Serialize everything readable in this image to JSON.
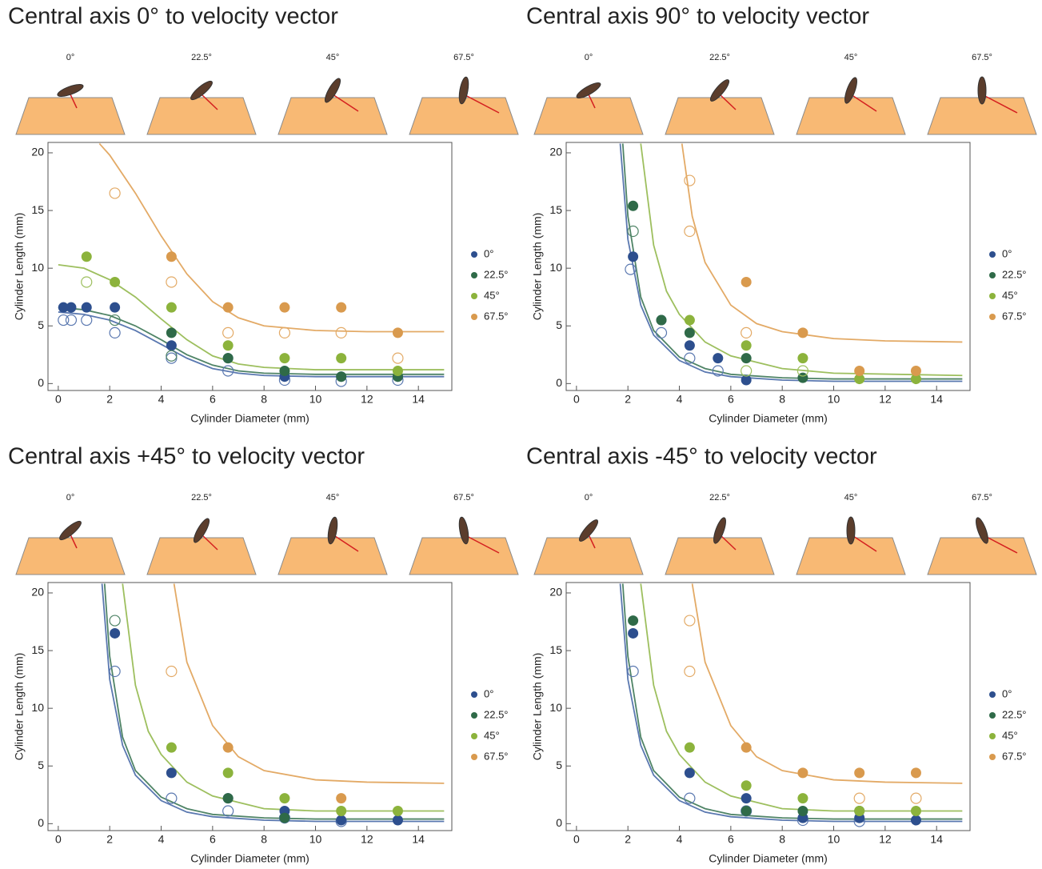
{
  "chart_data": [
    {
      "type": "scatter",
      "title": "Central axis 0° to velocity vector",
      "icon_labels": [
        "0°",
        "22.5°",
        "45°",
        "67.5°"
      ],
      "xlabel": "Cylinder Diameter (mm)",
      "ylabel": "Cylinder Length (mm)",
      "xlim": [
        -0.4,
        15.3
      ],
      "ylim": [
        -0.6,
        20.9
      ],
      "xticks": [
        0,
        2,
        4,
        6,
        8,
        10,
        12,
        14
      ],
      "yticks": [
        0,
        5,
        10,
        15,
        20
      ],
      "series": [
        {
          "name": "0°",
          "color": "#2d4f8e",
          "fit_color": "#5a78b0",
          "filled": {
            "x": [
              0.2,
              0.5,
              1.1,
              2.2,
              4.4,
              6.6,
              8.8,
              11,
              13.2
            ],
            "values": [
              6.6,
              6.6,
              6.6,
              6.6,
              3.3,
              2.2,
              0.6,
              0.6,
              0.6
            ]
          },
          "open": {
            "x": [
              0.2,
              0.5,
              1.1,
              2.2,
              4.4,
              6.6,
              8.8,
              11,
              13.2
            ],
            "values": [
              5.5,
              5.5,
              5.5,
              4.4,
              2.2,
              1.1,
              0.3,
              0.2,
              0.3
            ]
          },
          "fit": {
            "x": [
              0,
              1,
              2,
              3,
              4,
              5,
              6,
              7,
              8,
              10,
              12,
              15
            ],
            "values": [
              6.2,
              6.0,
              5.5,
              4.6,
              3.4,
              2.2,
              1.3,
              0.9,
              0.7,
              0.6,
              0.6,
              0.6
            ]
          }
        },
        {
          "name": "22.5°",
          "color": "#2f6a48",
          "fit_color": "#4f8466",
          "filled": {
            "x": [
              4.4,
              6.6,
              8.8,
              11,
              13.2
            ],
            "values": [
              4.4,
              2.2,
              1.1,
              0.6,
              0.6
            ]
          },
          "open": {
            "x": [
              2.2,
              4.4
            ],
            "values": [
              5.5,
              2.4
            ]
          },
          "fit": {
            "x": [
              0,
              1,
              2,
              3,
              4,
              5,
              6,
              7,
              8,
              10,
              12,
              15
            ],
            "values": [
              6.6,
              6.4,
              5.9,
              5.0,
              3.8,
              2.5,
              1.6,
              1.1,
              0.9,
              0.8,
              0.8,
              0.8
            ]
          }
        },
        {
          "name": "45°",
          "color": "#8cb33c",
          "fit_color": "#9dbf5e",
          "filled": {
            "x": [
              1.1,
              2.2,
              4.4,
              6.6,
              8.8,
              11,
              13.2
            ],
            "values": [
              11,
              8.8,
              6.6,
              3.3,
              2.2,
              2.2,
              1.1
            ]
          },
          "open": {
            "x": [
              1.1
            ],
            "values": [
              8.8
            ]
          },
          "fit": {
            "x": [
              0,
              1,
              2,
              3,
              4,
              5,
              6,
              7,
              8,
              10,
              12,
              15
            ],
            "values": [
              10.3,
              10.0,
              9.0,
              7.5,
              5.6,
              3.8,
              2.4,
              1.7,
              1.4,
              1.2,
              1.2,
              1.2
            ]
          }
        },
        {
          "name": "67.5°",
          "color": "#d99a4e",
          "fit_color": "#e3aa66",
          "filled": {
            "x": [
              4.4,
              6.6,
              8.8,
              11,
              13.2
            ],
            "values": [
              11,
              6.6,
              6.6,
              6.6,
              4.4
            ]
          },
          "open": {
            "x": [
              2.2,
              4.4,
              6.6,
              8.8,
              11,
              13.2
            ],
            "values": [
              16.5,
              8.8,
              4.4,
              4.4,
              4.4,
              2.2
            ]
          },
          "fit": {
            "x": [
              1.6,
              2,
              3,
              4,
              5,
              6,
              7,
              8,
              10,
              12,
              15
            ],
            "values": [
              20.8,
              19.8,
              16.5,
              12.8,
              9.5,
              7.1,
              5.7,
              5.0,
              4.6,
              4.5,
              4.5
            ]
          }
        }
      ]
    },
    {
      "type": "scatter",
      "title": "Central axis 90° to velocity vector",
      "icon_labels": [
        "0°",
        "22.5°",
        "45°",
        "67.5°"
      ],
      "xlabel": "Cylinder Diameter (mm)",
      "ylabel": "Cylinder Length (mm)",
      "xlim": [
        -0.4,
        15.3
      ],
      "ylim": [
        -0.6,
        20.9
      ],
      "xticks": [
        0,
        2,
        4,
        6,
        8,
        10,
        12,
        14
      ],
      "yticks": [
        0,
        5,
        10,
        15,
        20
      ],
      "series": [
        {
          "name": "0°",
          "color": "#2d4f8e",
          "fit_color": "#5a78b0",
          "filled": {
            "x": [
              2.2,
              3.3,
              4.4,
              5.5,
              6.6
            ],
            "values": [
              11,
              5.5,
              3.3,
              2.2,
              0.3
            ]
          },
          "open": {
            "x": [
              2.1,
              3.3,
              4.4,
              5.5
            ],
            "values": [
              9.9,
              4.4,
              2.2,
              1.1
            ]
          },
          "fit": {
            "x": [
              1.7,
              2,
              2.5,
              3,
              4,
              5,
              6,
              8,
              10,
              15
            ],
            "values": [
              20.8,
              12.5,
              6.8,
              4.2,
              2.0,
              1.0,
              0.6,
              0.3,
              0.2,
              0.2
            ]
          }
        },
        {
          "name": "22.5°",
          "color": "#2f6a48",
          "fit_color": "#4f8466",
          "filled": {
            "x": [
              2.2,
              3.3,
              4.4,
              6.6,
              8.8
            ],
            "values": [
              15.4,
              5.5,
              4.4,
              2.2,
              0.5
            ]
          },
          "open": {
            "x": [
              2.2
            ],
            "values": [
              13.2
            ]
          },
          "fit": {
            "x": [
              1.8,
              2,
              2.5,
              3,
              4,
              5,
              6,
              8,
              10,
              15
            ],
            "values": [
              20.8,
              14.5,
              7.5,
              4.6,
              2.3,
              1.3,
              0.8,
              0.5,
              0.4,
              0.4
            ]
          }
        },
        {
          "name": "45°",
          "color": "#8cb33c",
          "fit_color": "#9dbf5e",
          "filled": {
            "x": [
              4.4,
              6.6,
              8.8,
              11,
              13.2
            ],
            "values": [
              5.5,
              3.3,
              2.2,
              0.4,
              0.4
            ]
          },
          "open": {
            "x": [
              6.6,
              8.8
            ],
            "values": [
              1.1,
              1.1
            ]
          },
          "fit": {
            "x": [
              2.5,
              3,
              3.5,
              4,
              5,
              6,
              8,
              10,
              15
            ],
            "values": [
              20.8,
              12,
              8,
              6,
              3.6,
              2.4,
              1.3,
              0.9,
              0.7
            ]
          }
        },
        {
          "name": "67.5°",
          "color": "#d99a4e",
          "fit_color": "#e3aa66",
          "filled": {
            "x": [
              6.6,
              8.8,
              11,
              13.2
            ],
            "values": [
              8.8,
              4.4,
              1.1,
              1.1
            ]
          },
          "open": {
            "x": [
              4.4,
              4.4,
              6.6
            ],
            "values": [
              17.6,
              13.2,
              4.4
            ]
          },
          "fit": {
            "x": [
              4.1,
              4.5,
              5,
              6,
              7,
              8,
              10,
              12,
              15
            ],
            "values": [
              20.8,
              14.5,
              10.5,
              6.8,
              5.2,
              4.5,
              3.9,
              3.7,
              3.6
            ]
          }
        }
      ]
    },
    {
      "type": "scatter",
      "title": "Central axis +45° to velocity vector",
      "icon_labels": [
        "0°",
        "22.5°",
        "45°",
        "67.5°"
      ],
      "xlabel": "Cylinder Diameter (mm)",
      "ylabel": "Cylinder Length (mm)",
      "xlim": [
        -0.4,
        15.3
      ],
      "ylim": [
        -0.6,
        20.9
      ],
      "xticks": [
        0,
        2,
        4,
        6,
        8,
        10,
        12,
        14
      ],
      "yticks": [
        0,
        5,
        10,
        15,
        20
      ],
      "series": [
        {
          "name": "0°",
          "color": "#2d4f8e",
          "fit_color": "#5a78b0",
          "filled": {
            "x": [
              2.2,
              4.4,
              6.6,
              8.8,
              11,
              13.2
            ],
            "values": [
              16.5,
              4.4,
              2.2,
              1.1,
              0.3,
              0.3
            ]
          },
          "open": {
            "x": [
              2.2,
              4.4,
              6.6,
              8.8,
              11
            ],
            "values": [
              13.2,
              2.2,
              1.1,
              0.5,
              0.2
            ]
          },
          "fit": {
            "x": [
              1.7,
              2,
              2.5,
              3,
              4,
              5,
              6,
              8,
              10,
              15
            ],
            "values": [
              20.8,
              12.5,
              6.8,
              4.2,
              2.0,
              1.0,
              0.6,
              0.3,
              0.2,
              0.2
            ]
          }
        },
        {
          "name": "22.5°",
          "color": "#2f6a48",
          "fit_color": "#4f8466",
          "filled": {
            "x": [
              6.6,
              8.8
            ],
            "values": [
              2.2,
              0.5
            ]
          },
          "open": {
            "x": [
              2.2
            ],
            "values": [
              17.6
            ]
          },
          "fit": {
            "x": [
              1.8,
              2,
              2.5,
              3,
              4,
              5,
              6,
              8,
              10,
              15
            ],
            "values": [
              20.8,
              14.5,
              7.5,
              4.6,
              2.3,
              1.3,
              0.8,
              0.5,
              0.4,
              0.4
            ]
          }
        },
        {
          "name": "45°",
          "color": "#8cb33c",
          "fit_color": "#9dbf5e",
          "filled": {
            "x": [
              4.4,
              6.6,
              8.8,
              11,
              13.2
            ],
            "values": [
              6.6,
              4.4,
              2.2,
              1.1,
              1.1
            ]
          },
          "fit": {
            "x": [
              2.5,
              3,
              3.5,
              4,
              5,
              6,
              8,
              10,
              15
            ],
            "values": [
              20.8,
              12,
              8,
              6,
              3.6,
              2.4,
              1.3,
              1.1,
              1.1
            ]
          }
        },
        {
          "name": "67.5°",
          "color": "#d99a4e",
          "fit_color": "#e3aa66",
          "filled": {
            "x": [
              6.6,
              11
            ],
            "values": [
              6.6,
              2.2
            ]
          },
          "open": {
            "x": [
              4.4
            ],
            "values": [
              13.2
            ]
          },
          "fit": {
            "x": [
              4.5,
              5,
              6,
              7,
              8,
              10,
              12,
              15
            ],
            "values": [
              20.8,
              14,
              8.5,
              5.8,
              4.6,
              3.8,
              3.6,
              3.5
            ]
          }
        }
      ]
    },
    {
      "type": "scatter",
      "title": "Central axis -45° to velocity vector",
      "icon_labels": [
        "0°",
        "22.5°",
        "45°",
        "67.5°"
      ],
      "xlabel": "Cylinder Diameter (mm)",
      "ylabel": "Cylinder Length (mm)",
      "xlim": [
        -0.4,
        15.3
      ],
      "ylim": [
        -0.6,
        20.9
      ],
      "xticks": [
        0,
        2,
        4,
        6,
        8,
        10,
        12,
        14
      ],
      "yticks": [
        0,
        5,
        10,
        15,
        20
      ],
      "series": [
        {
          "name": "0°",
          "color": "#2d4f8e",
          "fit_color": "#5a78b0",
          "filled": {
            "x": [
              2.2,
              4.4,
              6.6,
              8.8,
              11,
              13.2
            ],
            "values": [
              16.5,
              4.4,
              2.2,
              0.5,
              0.5,
              0.3
            ]
          },
          "open": {
            "x": [
              2.2,
              4.4,
              6.6,
              8.8,
              11
            ],
            "values": [
              13.2,
              2.2,
              1.1,
              0.3,
              0.2
            ]
          },
          "fit": {
            "x": [
              1.7,
              2,
              2.5,
              3,
              4,
              5,
              6,
              8,
              10,
              15
            ],
            "values": [
              20.8,
              12.5,
              6.8,
              4.2,
              2.0,
              1.0,
              0.6,
              0.3,
              0.2,
              0.2
            ]
          }
        },
        {
          "name": "22.5°",
          "color": "#2f6a48",
          "fit_color": "#4f8466",
          "filled": {
            "x": [
              2.2,
              6.6,
              8.8,
              11
            ],
            "values": [
              17.6,
              1.1,
              1.1,
              1.1
            ]
          },
          "fit": {
            "x": [
              1.8,
              2,
              2.5,
              3,
              4,
              5,
              6,
              8,
              10,
              15
            ],
            "values": [
              20.8,
              14.5,
              7.5,
              4.6,
              2.3,
              1.3,
              0.8,
              0.5,
              0.4,
              0.4
            ]
          }
        },
        {
          "name": "45°",
          "color": "#8cb33c",
          "fit_color": "#9dbf5e",
          "filled": {
            "x": [
              4.4,
              6.6,
              8.8,
              11,
              13.2
            ],
            "values": [
              6.6,
              3.3,
              2.2,
              1.1,
              1.1
            ]
          },
          "fit": {
            "x": [
              2.5,
              3,
              3.5,
              4,
              5,
              6,
              8,
              10,
              15
            ],
            "values": [
              20.8,
              12,
              8,
              6,
              3.6,
              2.4,
              1.3,
              1.1,
              1.1
            ]
          }
        },
        {
          "name": "67.5°",
          "color": "#d99a4e",
          "fit_color": "#e3aa66",
          "filled": {
            "x": [
              6.6,
              8.8,
              11,
              13.2
            ],
            "values": [
              6.6,
              4.4,
              4.4,
              4.4
            ]
          },
          "open": {
            "x": [
              4.4,
              4.4,
              11,
              13.2
            ],
            "values": [
              17.6,
              13.2,
              2.2,
              2.2
            ]
          },
          "fit": {
            "x": [
              4.5,
              5,
              6,
              7,
              8,
              10,
              12,
              15
            ],
            "values": [
              20.8,
              14,
              8.5,
              5.8,
              4.6,
              3.8,
              3.6,
              3.5
            ]
          }
        }
      ]
    }
  ]
}
